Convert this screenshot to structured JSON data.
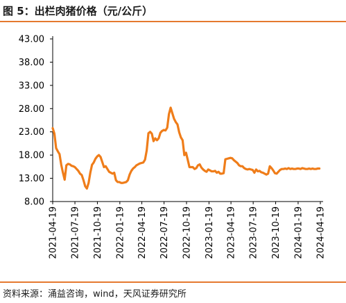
{
  "header": {
    "title": "图 5：出栏肉猪价格（元/公斤）"
  },
  "footer": {
    "source": "资料来源：涌益咨询，wind，天风证券研究所"
  },
  "colors": {
    "accent": "#e5792f",
    "series": "#ef7d1a",
    "axis": "#000000"
  },
  "chart_data": {
    "type": "line",
    "title": "出栏肉猪价格（元/公斤）",
    "xlabel": "",
    "ylabel": "",
    "ylim": [
      8,
      43
    ],
    "yticks": [
      "43.00",
      "38.00",
      "33.00",
      "28.00",
      "23.00",
      "18.00",
      "13.00",
      "8.00"
    ],
    "ytick_values": [
      43,
      38,
      33,
      28,
      23,
      18,
      13,
      8
    ],
    "xticks": [
      "2021-04-19",
      "2021-07-19",
      "2021-10-19",
      "2022-01-19",
      "2022-04-19",
      "2022-07-19",
      "2022-10-19",
      "2023-01-19",
      "2023-04-19",
      "2023-07-19",
      "2023-10-19",
      "2024-01-19",
      "2024-04-19"
    ],
    "grid": false,
    "legend": "none",
    "series": [
      {
        "x": [
          "2021-04-19",
          "2021-04-26",
          "2021-05-03",
          "2021-05-10",
          "2021-05-17",
          "2021-05-24",
          "2021-05-31",
          "2021-06-07",
          "2021-06-14",
          "2021-06-21",
          "2021-06-28",
          "2021-07-05",
          "2021-07-12",
          "2021-07-19",
          "2021-07-26",
          "2021-08-02",
          "2021-08-09",
          "2021-08-16",
          "2021-08-23",
          "2021-08-30",
          "2021-09-06",
          "2021-09-13",
          "2021-09-20",
          "2021-09-27",
          "2021-10-04",
          "2021-10-11",
          "2021-10-18",
          "2021-10-25",
          "2021-11-01",
          "2021-11-08",
          "2021-11-15",
          "2021-11-22",
          "2021-11-29",
          "2021-12-06",
          "2021-12-13",
          "2021-12-20",
          "2021-12-27",
          "2022-01-03",
          "2022-01-10",
          "2022-01-17",
          "2022-01-24",
          "2022-01-31",
          "2022-02-07",
          "2022-02-14",
          "2022-02-21",
          "2022-02-28",
          "2022-03-07",
          "2022-03-14",
          "2022-03-21",
          "2022-03-28",
          "2022-04-04",
          "2022-04-11",
          "2022-04-18",
          "2022-04-25",
          "2022-05-02",
          "2022-05-09",
          "2022-05-16",
          "2022-05-23",
          "2022-05-30",
          "2022-06-06",
          "2022-06-13",
          "2022-06-20",
          "2022-06-27",
          "2022-07-04",
          "2022-07-11",
          "2022-07-18",
          "2022-07-25",
          "2022-08-01",
          "2022-08-08",
          "2022-08-15",
          "2022-08-22",
          "2022-08-29",
          "2022-09-05",
          "2022-09-12",
          "2022-09-19",
          "2022-09-26",
          "2022-10-03",
          "2022-10-10",
          "2022-10-17",
          "2022-10-24",
          "2022-10-31",
          "2022-11-07",
          "2022-11-14",
          "2022-11-21",
          "2022-11-28",
          "2022-12-05",
          "2022-12-12",
          "2022-12-19",
          "2022-12-26",
          "2023-01-02",
          "2023-01-09",
          "2023-01-16",
          "2023-01-23",
          "2023-01-30",
          "2023-02-06",
          "2023-02-13",
          "2023-02-20",
          "2023-02-27",
          "2023-03-06",
          "2023-03-13",
          "2023-03-20",
          "2023-03-27",
          "2023-04-03",
          "2023-04-10",
          "2023-04-17",
          "2023-04-24",
          "2023-05-01",
          "2023-05-08",
          "2023-05-15",
          "2023-05-22",
          "2023-05-29",
          "2023-06-05",
          "2023-06-12",
          "2023-06-19",
          "2023-06-26",
          "2023-07-03",
          "2023-07-10",
          "2023-07-17",
          "2023-07-24",
          "2023-07-31",
          "2023-08-07",
          "2023-08-14",
          "2023-08-21",
          "2023-08-28",
          "2023-09-04",
          "2023-09-11",
          "2023-09-18",
          "2023-09-25",
          "2023-10-02",
          "2023-10-09",
          "2023-10-16",
          "2023-10-23",
          "2023-10-30",
          "2023-11-06",
          "2023-11-13",
          "2023-11-20",
          "2023-11-27",
          "2023-12-04",
          "2023-12-11",
          "2023-12-18",
          "2023-12-25",
          "2024-01-01",
          "2024-01-08",
          "2024-01-15",
          "2024-01-22",
          "2024-01-29",
          "2024-02-05",
          "2024-02-12",
          "2024-02-19",
          "2024-02-26",
          "2024-03-04",
          "2024-03-11",
          "2024-03-18",
          "2024-03-25",
          "2024-04-01",
          "2024-04-08",
          "2024-04-15"
        ],
        "values": [
          23.8,
          22.6,
          19.5,
          18.8,
          18.2,
          15.9,
          14.2,
          12.7,
          15.8,
          16.1,
          16.0,
          15.7,
          15.6,
          15.4,
          15.0,
          14.6,
          14.0,
          13.7,
          12.6,
          11.3,
          10.8,
          12.0,
          14.2,
          15.9,
          16.4,
          17.2,
          17.7,
          18.0,
          17.6,
          16.5,
          15.4,
          15.6,
          15.0,
          14.4,
          14.2,
          14.0,
          14.2,
          12.6,
          12.2,
          12.2,
          12.0,
          12.0,
          12.1,
          12.2,
          12.6,
          13.8,
          14.6,
          15.1,
          15.4,
          15.8,
          16.0,
          16.2,
          16.3,
          16.4,
          17.0,
          19.0,
          22.7,
          23.0,
          22.6,
          21.0,
          21.6,
          21.2,
          21.6,
          22.8,
          23.2,
          23.4,
          23.3,
          23.9,
          26.8,
          28.2,
          27.0,
          25.8,
          25.1,
          24.6,
          22.9,
          21.8,
          21.2,
          18.0,
          18.5,
          17.0,
          15.4,
          15.4,
          15.4,
          15.0,
          15.2,
          15.8,
          16.0,
          15.3,
          14.9,
          14.6,
          14.4,
          14.9,
          14.7,
          14.5,
          14.5,
          14.6,
          14.2,
          14.4,
          14.0,
          14.0,
          14.1,
          17.1,
          17.2,
          17.3,
          17.4,
          17.3,
          16.9,
          16.6,
          16.3,
          15.8,
          15.6,
          15.6,
          15.2,
          15.0,
          14.9,
          15.0,
          14.9,
          14.8,
          14.2,
          14.9,
          14.5,
          14.6,
          14.3,
          14.2,
          14.0,
          13.8,
          14.0,
          15.6,
          15.2,
          14.7,
          14.1,
          14.0,
          14.4,
          14.8,
          15.0,
          15.0,
          15.1,
          15.0,
          15.2,
          15.0,
          15.1,
          15.0,
          15.0,
          15.1,
          15.1,
          15.0,
          15.2,
          15.1,
          15.0,
          15.0,
          15.1,
          15.0,
          15.1,
          15.0,
          15.0,
          15.1,
          15.1
        ]
      }
    ]
  }
}
